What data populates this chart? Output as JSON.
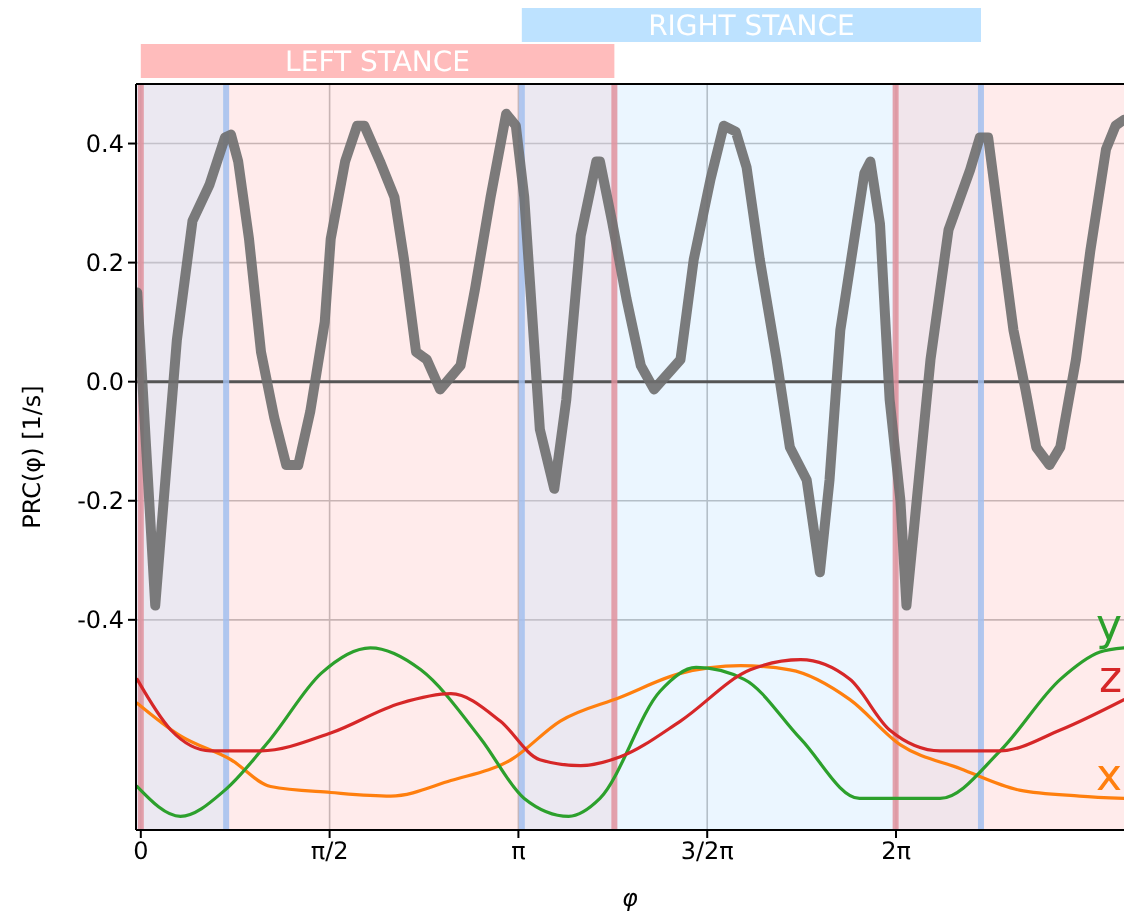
{
  "chart_data": {
    "type": "line",
    "xlabel": "φ",
    "ylabel": "PRC(φ) [1/s]",
    "xlim": [
      -0.04,
      8.18
    ],
    "ylim": [
      -0.753,
      0.5
    ],
    "xticks": [
      {
        "value": 0,
        "label": "0"
      },
      {
        "value": 1.5708,
        "label": "π/2"
      },
      {
        "value": 3.1416,
        "label": "π"
      },
      {
        "value": 4.7124,
        "label": "3/2π"
      },
      {
        "value": 6.2832,
        "label": "2π"
      }
    ],
    "yticks": [
      {
        "value": -0.4,
        "label": "-0.4"
      },
      {
        "value": -0.2,
        "label": "-0.2"
      },
      {
        "value": 0,
        "label": "0.0"
      },
      {
        "value": 0.2,
        "label": "0.2"
      },
      {
        "value": 0.4,
        "label": "0.4"
      }
    ],
    "grid": true,
    "series": [
      {
        "color": "#6e6e6e",
        "x": [
          -0.03,
          0.12,
          0.17,
          0.3,
          0.43,
          0.57,
          0.7,
          0.75,
          0.81,
          0.9,
          1.0,
          1.11,
          1.21,
          1.31,
          1.41,
          1.53,
          1.58,
          1.7,
          1.8,
          1.86,
          1.99,
          2.11,
          2.19,
          2.29,
          2.38,
          2.49,
          2.66,
          2.78,
          2.91,
          3.04,
          3.12,
          3.19,
          3.26,
          3.32,
          3.44,
          3.54,
          3.66,
          3.79,
          3.82,
          3.92,
          4.04,
          4.16,
          4.27,
          4.49,
          4.6,
          4.74,
          4.85,
          4.95,
          5.04,
          5.15,
          5.29,
          5.4,
          5.54,
          5.65,
          5.73,
          5.82,
          6.02,
          6.07,
          6.15,
          6.23,
          6.32,
          6.37,
          6.57,
          6.72,
          6.9,
          6.98,
          7.05,
          7.15,
          7.26,
          7.36,
          7.45,
          7.56,
          7.65,
          7.78,
          7.9,
          8.03,
          8.11,
          8.18
        ],
        "values": [
          0.15,
          -0.376,
          -0.25,
          0.07,
          0.27,
          0.33,
          0.41,
          0.415,
          0.37,
          0.24,
          0.05,
          -0.06,
          -0.14,
          -0.14,
          -0.05,
          0.1,
          0.24,
          0.37,
          0.43,
          0.43,
          0.37,
          0.31,
          0.205,
          0.05,
          0.037,
          -0.013,
          0.027,
          0.155,
          0.31,
          0.45,
          0.43,
          0.31,
          0.1,
          -0.08,
          -0.18,
          -0.03,
          0.245,
          0.37,
          0.37,
          0.27,
          0.14,
          0.027,
          -0.013,
          0.037,
          0.205,
          0.34,
          0.43,
          0.42,
          0.36,
          0.205,
          0.037,
          -0.11,
          -0.165,
          -0.32,
          -0.165,
          0.087,
          0.35,
          0.37,
          0.265,
          -0.03,
          -0.2,
          -0.376,
          0.037,
          0.255,
          0.356,
          0.41,
          0.41,
          0.255,
          0.087,
          -0.013,
          -0.11,
          -0.14,
          -0.11,
          0.037,
          0.22,
          0.39,
          0.43,
          0.44
        ]
      },
      {
        "name": "x",
        "color": "#ff7f0e",
        "x": [
          -0.03,
          0.33,
          0.75,
          1.08,
          1.58,
          2.08,
          2.58,
          3.08,
          3.49,
          3.99,
          4.49,
          4.99,
          5.4,
          5.9,
          6.32,
          6.82,
          7.31,
          7.81,
          8.18
        ],
        "values": [
          -0.54,
          -0.595,
          -0.635,
          -0.68,
          -0.69,
          -0.696,
          -0.67,
          -0.635,
          -0.57,
          -0.53,
          -0.49,
          -0.477,
          -0.484,
          -0.534,
          -0.61,
          -0.65,
          -0.686,
          -0.696,
          -0.7
        ]
      },
      {
        "name": "y",
        "color": "#2ca02c",
        "x": [
          -0.03,
          0.33,
          0.7,
          1.08,
          1.5,
          1.91,
          2.33,
          2.83,
          3.19,
          3.56,
          3.82,
          4.32,
          4.62,
          5.02,
          5.49,
          5.98,
          6.65,
          7.15,
          7.65,
          7.98,
          8.18
        ],
        "values": [
          -0.68,
          -0.73,
          -0.686,
          -0.6,
          -0.49,
          -0.447,
          -0.484,
          -0.6,
          -0.7,
          -0.73,
          -0.7,
          -0.52,
          -0.48,
          -0.5,
          -0.6,
          -0.7,
          -0.7,
          -0.62,
          -0.5,
          -0.454,
          -0.447
        ]
      },
      {
        "name": "z",
        "color": "#d62728",
        "x": [
          -0.03,
          0.25,
          0.58,
          1.0,
          1.58,
          2.16,
          2.58,
          2.99,
          3.32,
          3.66,
          3.99,
          4.49,
          5.07,
          5.49,
          5.9,
          6.23,
          6.65,
          7.15,
          7.65,
          8.18
        ],
        "values": [
          -0.5,
          -0.585,
          -0.62,
          -0.62,
          -0.59,
          -0.54,
          -0.524,
          -0.57,
          -0.635,
          -0.645,
          -0.63,
          -0.57,
          -0.484,
          -0.467,
          -0.5,
          -0.585,
          -0.62,
          -0.62,
          -0.585,
          -0.534
        ]
      }
    ],
    "bands": [
      {
        "axis": "x",
        "from": 0,
        "to": 3.94,
        "label": "LEFT STANCE",
        "color": "#ffbcbc"
      },
      {
        "axis": "x",
        "from": 3.17,
        "to": 6.99,
        "label": "RIGHT STANCE",
        "color": "#bde2ff"
      },
      {
        "axis": "x",
        "from": -0.04,
        "to": 0.71,
        "color": "#bde2ff"
      },
      {
        "axis": "x",
        "from": 6.28,
        "to": 8.18,
        "color": "#ffbcbc"
      }
    ],
    "ref_lines": [
      {
        "axis": "y",
        "value": 0,
        "color": "#555555"
      },
      {
        "axis": "x",
        "value": 0,
        "color": "#e0929e"
      },
      {
        "axis": "x",
        "value": 3.94,
        "color": "#e0929e"
      },
      {
        "axis": "x",
        "value": 6.28,
        "color": "#e0929e"
      },
      {
        "axis": "x",
        "value": 0.71,
        "color": "#a3c0ee"
      },
      {
        "axis": "x",
        "value": 3.17,
        "color": "#a3c0ee"
      },
      {
        "axis": "x",
        "value": 6.99,
        "color": "#a3c0ee"
      }
    ]
  }
}
